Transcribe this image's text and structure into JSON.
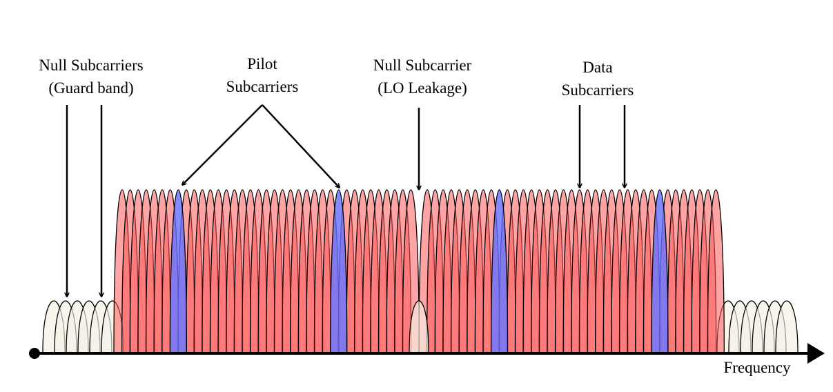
{
  "annotations": {
    "guard": [
      "Null Subcarriers",
      "(Guard band)"
    ],
    "pilot": [
      "Pilot",
      "Subcarriers"
    ],
    "lo": [
      "Null Subcarrier",
      "(LO Leakage)"
    ],
    "data": [
      "Data",
      "Subcarriers"
    ]
  },
  "axis_label": "Frequency"
}
